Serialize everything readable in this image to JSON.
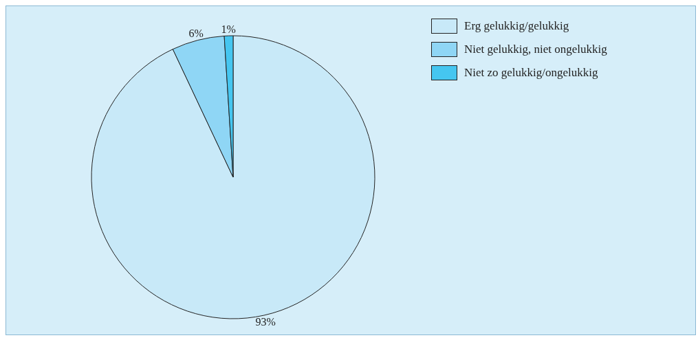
{
  "chart_data": {
    "type": "pie",
    "categories": [
      "Erg gelukkig/gelukkig",
      "Niet gelukkig, niet ongelukkig",
      "Niet zo gelukkig/ongelukkig"
    ],
    "values": [
      93,
      6,
      1
    ],
    "colors": [
      "#c8e9f8",
      "#8fd6f5",
      "#45c6f0"
    ],
    "value_labels": [
      "93%",
      "6%",
      "1%"
    ],
    "legend": "top right"
  }
}
